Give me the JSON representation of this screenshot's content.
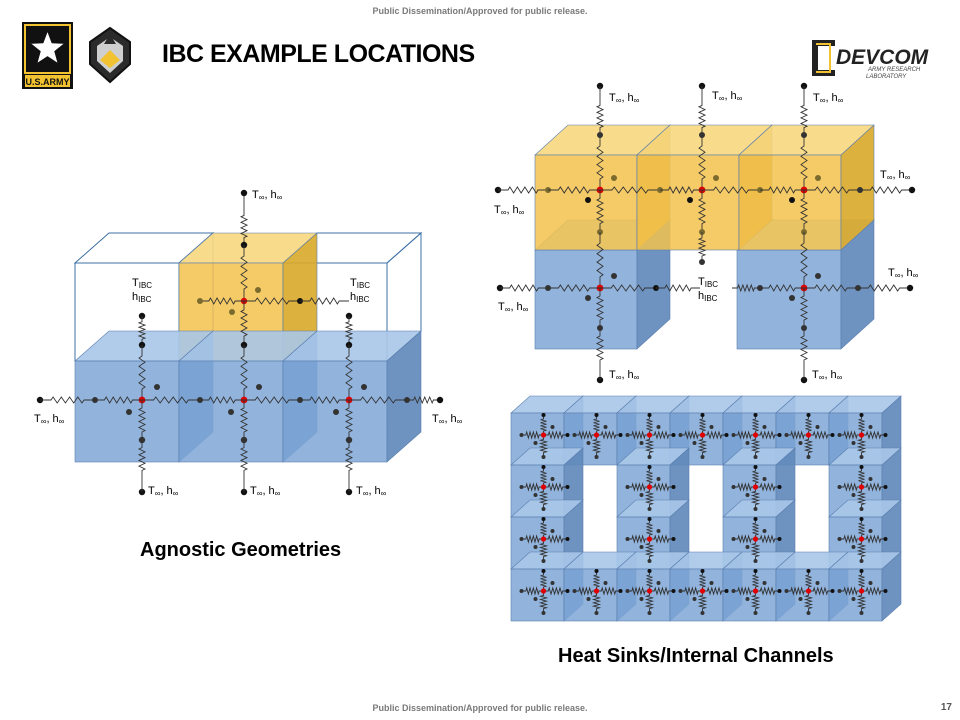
{
  "header": {
    "release_notice": "Public Dissemination/Approved for public release.",
    "title": "IBC EXAMPLE LOCATIONS",
    "army_logo_text": "U.S.ARMY",
    "devcom_logo_text": "DEVCOM",
    "devcom_sub_line1": "ARMY RESEARCH",
    "devcom_sub_line2": "LABORATORY"
  },
  "footer": {
    "release_notice": "Public Dissemination/Approved for public release.",
    "page_number": "17"
  },
  "labels": {
    "t_inf": "T",
    "inf_h": "∞, h",
    "inf": "∞",
    "t_ibc": "T",
    "ibc_sub": "IBC",
    "h": "h"
  },
  "captions": {
    "left": "Agnostic Geometries",
    "right": "Heat Sinks/Internal Channels"
  },
  "colors": {
    "blue_face": "#7ea6d6",
    "blue_top": "#a9c6e8",
    "blue_side": "#5f87b9",
    "yellow_face": "#f3c24e",
    "yellow_top": "#f7d87f",
    "yellow_side": "#d9a928",
    "node_red": "#e00000"
  }
}
